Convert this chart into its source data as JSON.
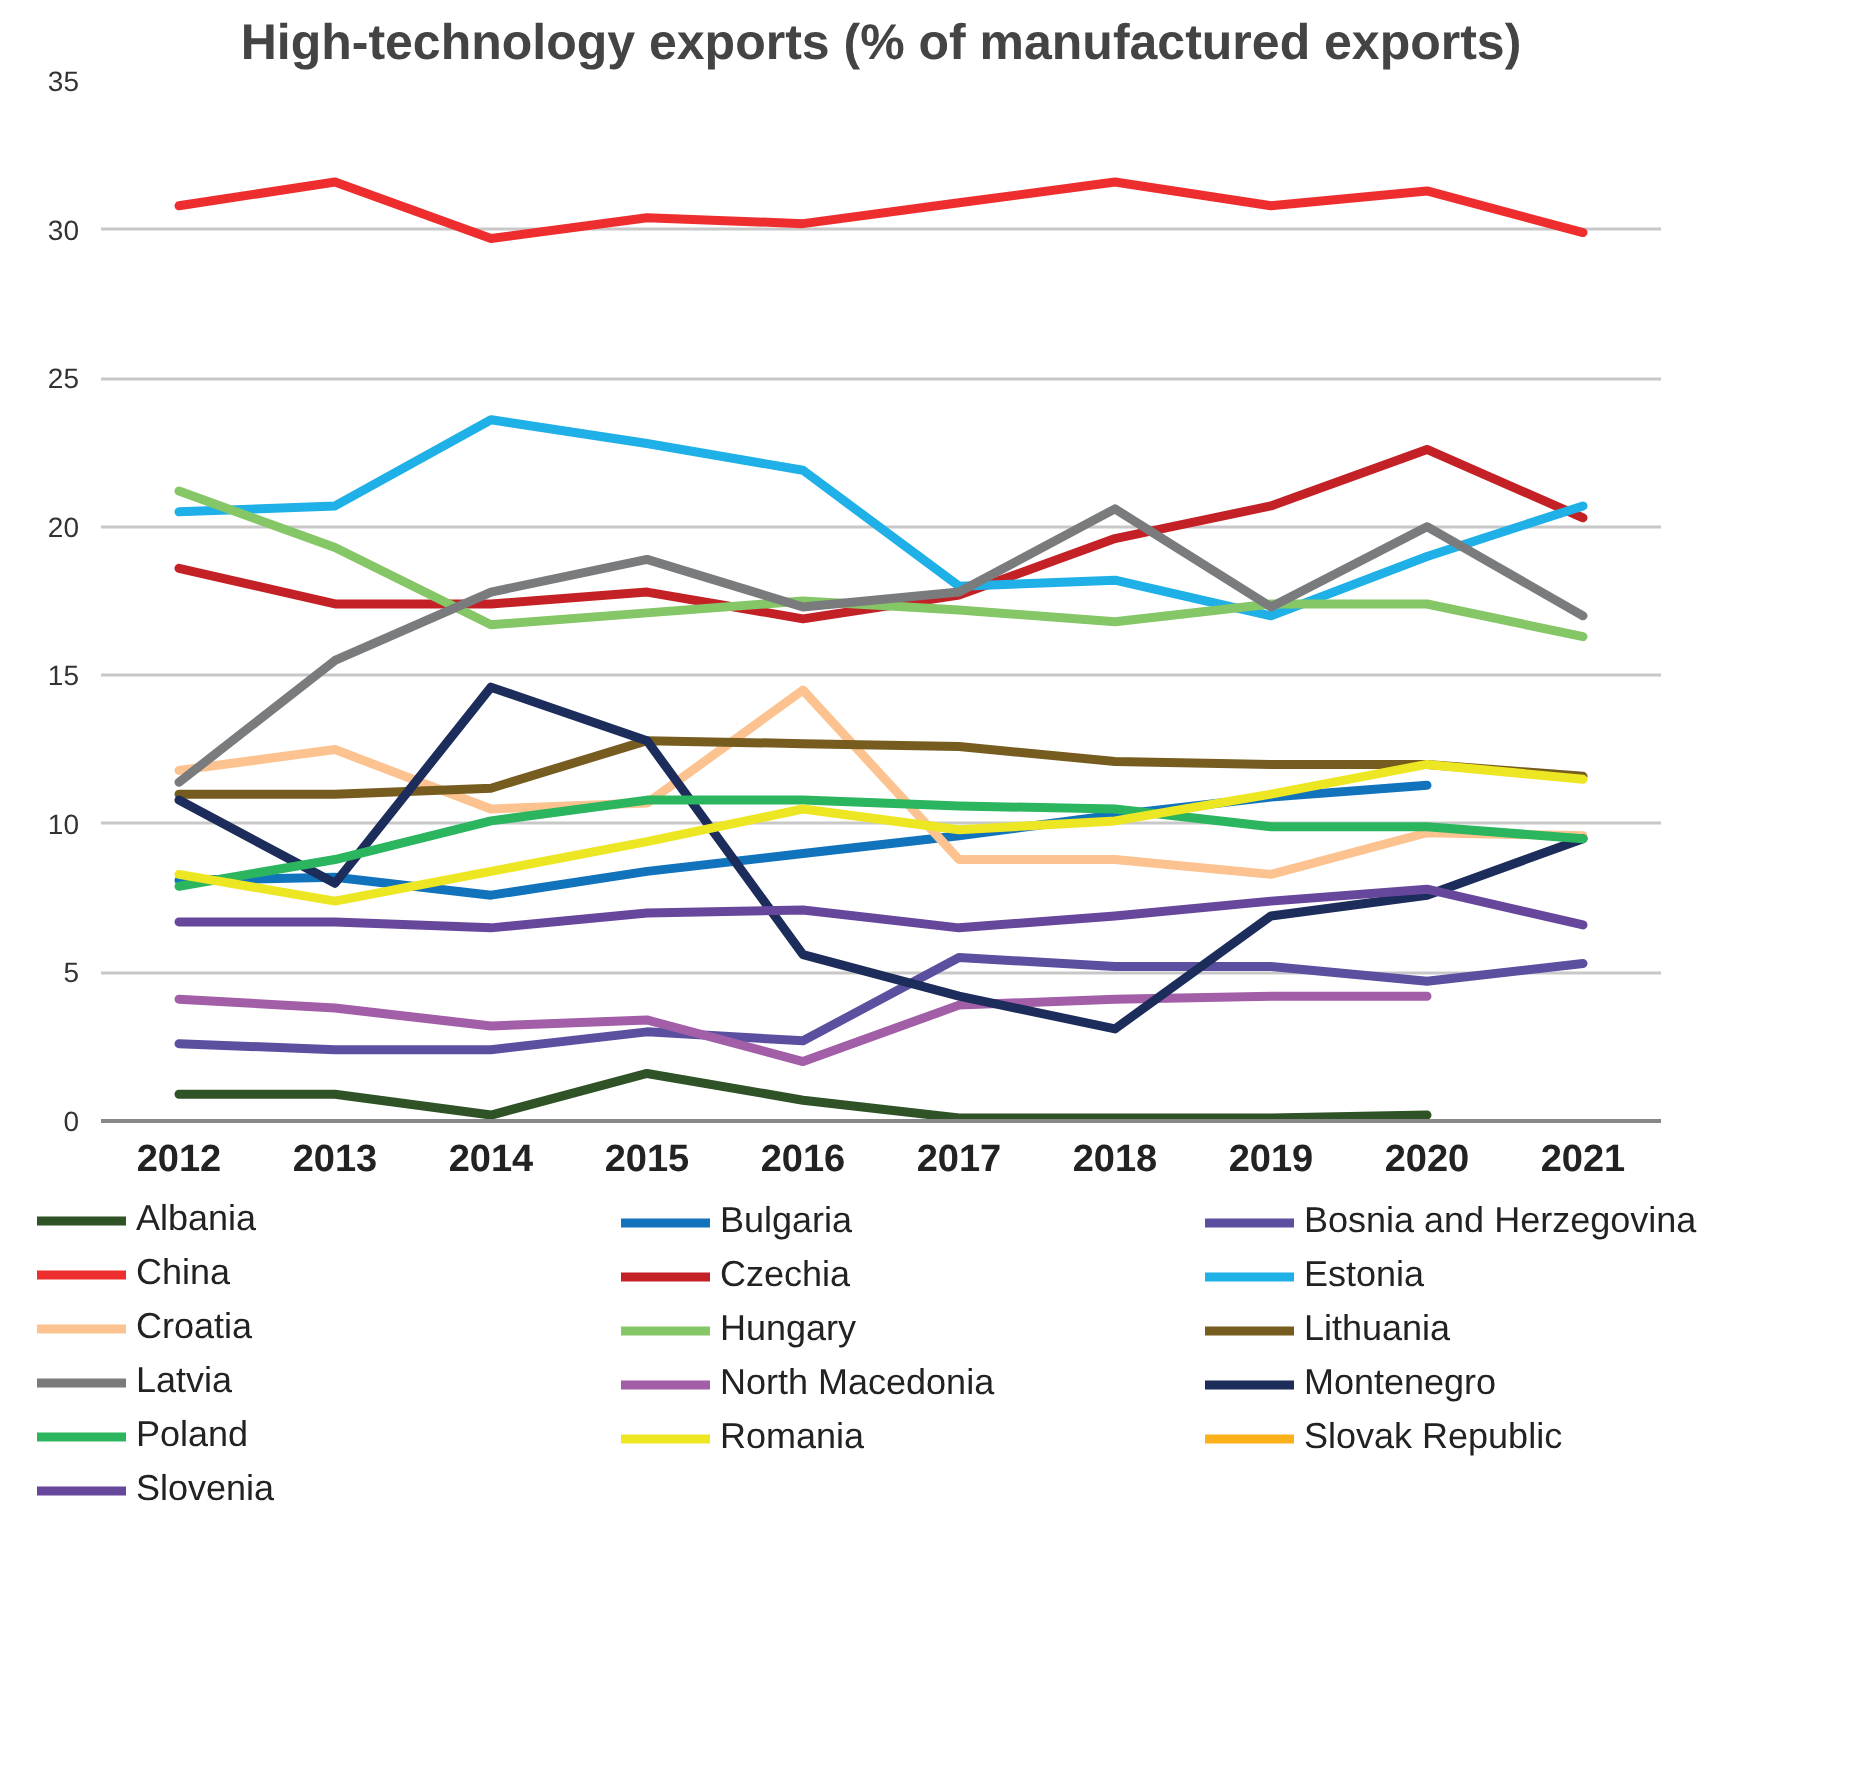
{
  "chart_data": {
    "type": "line",
    "title": "High-technology exports (% of manufactured exports)",
    "categories": [
      "2012",
      "2013",
      "2014",
      "2015",
      "2016",
      "2017",
      "2018",
      "2019",
      "2020",
      "2021"
    ],
    "ylim": [
      0,
      35
    ],
    "yticks": [
      0,
      5,
      10,
      15,
      20,
      25,
      30,
      35
    ],
    "grid": "y",
    "legend": "bottom",
    "marker": "none",
    "line_style": "solid",
    "series": [
      {
        "name": "Albania",
        "color": "#2f5226",
        "values": [
          0.9,
          0.9,
          0.2,
          1.6,
          0.7,
          0.1,
          0.1,
          0.1,
          0.2,
          null
        ]
      },
      {
        "name": "Bulgaria",
        "color": "#1273bd",
        "values": [
          8.1,
          8.2,
          7.6,
          8.4,
          9.0,
          9.6,
          10.3,
          10.9,
          11.3,
          null
        ]
      },
      {
        "name": "Bosnia and Herzegovina",
        "color": "#5b4fa0",
        "values": [
          2.6,
          2.4,
          2.4,
          3.0,
          2.7,
          5.5,
          5.2,
          5.2,
          4.7,
          5.3
        ]
      },
      {
        "name": "China",
        "color": "#ee2e2e",
        "values": [
          30.8,
          31.6,
          29.7,
          30.4,
          30.2,
          30.9,
          31.6,
          30.8,
          31.3,
          29.9
        ]
      },
      {
        "name": "Czechia",
        "color": "#c42127",
        "values": [
          18.6,
          17.4,
          17.4,
          17.8,
          16.9,
          17.7,
          19.6,
          20.7,
          22.6,
          20.3
        ]
      },
      {
        "name": "Estonia",
        "color": "#1eb0e6",
        "values": [
          20.5,
          20.7,
          23.6,
          22.8,
          21.9,
          18.0,
          18.2,
          17.0,
          19.0,
          20.7
        ]
      },
      {
        "name": "Croatia",
        "color": "#fcc390",
        "values": [
          11.8,
          12.5,
          10.5,
          10.7,
          14.5,
          8.8,
          8.8,
          8.3,
          9.7,
          9.6
        ]
      },
      {
        "name": "Hungary",
        "color": "#85c666",
        "values": [
          21.2,
          19.3,
          16.7,
          17.1,
          17.5,
          17.2,
          16.8,
          17.4,
          17.4,
          16.3
        ]
      },
      {
        "name": "Lithuania",
        "color": "#765c1f",
        "values": [
          11.0,
          11.0,
          11.2,
          12.8,
          12.7,
          12.6,
          12.1,
          12.0,
          12.0,
          11.6
        ]
      },
      {
        "name": "Latvia",
        "color": "#7a7b7d",
        "values": [
          11.4,
          15.5,
          17.8,
          18.9,
          17.3,
          17.8,
          20.6,
          17.3,
          20.0,
          17.0
        ]
      },
      {
        "name": "North Macedonia",
        "color": "#a25ea6",
        "values": [
          4.1,
          3.8,
          3.2,
          3.4,
          2.0,
          3.9,
          4.1,
          4.2,
          4.2,
          null
        ]
      },
      {
        "name": "Montenegro",
        "color": "#1c2c5b",
        "values": [
          10.8,
          8.0,
          14.6,
          12.8,
          5.6,
          4.2,
          3.1,
          6.9,
          7.6,
          9.5
        ]
      },
      {
        "name": "Poland",
        "color": "#2bb55e",
        "values": [
          7.9,
          8.8,
          10.1,
          10.8,
          10.8,
          10.6,
          10.5,
          9.9,
          9.9,
          9.5
        ]
      },
      {
        "name": "Romania",
        "color": "#ede623",
        "values": [
          8.3,
          7.4,
          8.4,
          9.4,
          10.5,
          9.8,
          10.1,
          11.0,
          12.0,
          11.5
        ]
      },
      {
        "name": "Slovak Republic",
        "color": "#fbb21a",
        "values": [
          null,
          null,
          null,
          null,
          null,
          null,
          null,
          null,
          null,
          null
        ]
      },
      {
        "name": "Slovenia",
        "color": "#67479c",
        "values": [
          6.7,
          6.7,
          6.5,
          7.0,
          7.1,
          6.5,
          6.9,
          7.4,
          7.8,
          6.6
        ]
      }
    ]
  }
}
